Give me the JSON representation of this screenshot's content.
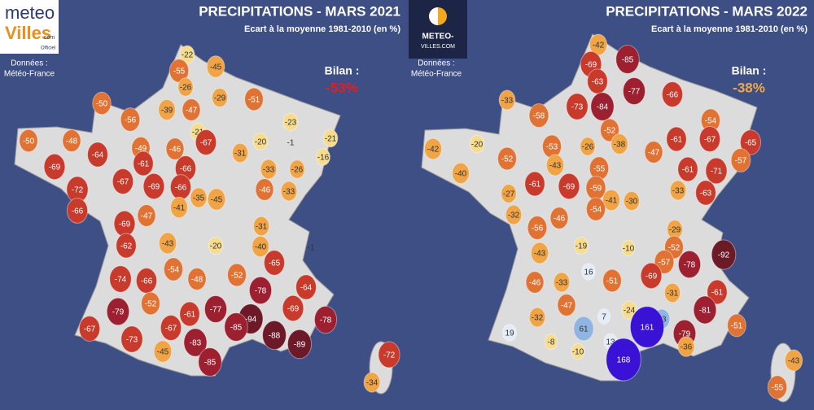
{
  "maps": [
    {
      "title": "PRECIPITATIONS - MARS 2021",
      "subtitle": "Ecart à la moyenne 1981-2010 (en %)",
      "logo": [
        "meteo",
        "Villes",
        ".com",
        "Officiel"
      ],
      "source_label": "Données :",
      "source": "Météo-France",
      "balance_label": "Bilan :",
      "balance": "-53%",
      "values": [
        -22,
        -45,
        -55,
        -26,
        -29,
        -51,
        -50,
        -39,
        -47,
        -56,
        -23,
        -21,
        -67,
        -20,
        -1,
        -21,
        -50,
        -48,
        -49,
        -46,
        -31,
        -16,
        -64,
        -61,
        -33,
        -26,
        -69,
        -66,
        -67,
        -69,
        -66,
        -46,
        -33,
        -72,
        -35,
        -45,
        -41,
        -66,
        -47,
        -31,
        -69,
        -43,
        -20,
        -40,
        -1,
        -62,
        -65,
        -54,
        -48,
        -52,
        -74,
        -66,
        -64,
        -78,
        -52,
        -61,
        -77,
        -79,
        -69,
        -78,
        -94,
        -85,
        -67,
        -67,
        -73,
        -88,
        -83,
        -89,
        -45,
        -72,
        -85,
        -34
      ]
    },
    {
      "title": "PRECIPITATIONS - MARS 2022",
      "subtitle": "Ecart à la moyenne 1981-2010 (en %)",
      "logo": [
        "METEO-",
        "VILLES.COM"
      ],
      "source_label": "Données :",
      "source": "Météo-France",
      "balance_label": "Bilan :",
      "balance": "-38%",
      "values": [
        -42,
        -69,
        -85,
        -63,
        -77,
        -66,
        -33,
        -73,
        -84,
        -58,
        -52,
        -54,
        -38,
        -20,
        -26,
        -53,
        -61,
        -67,
        -65,
        -42,
        -47,
        -52,
        -43,
        -57,
        -40,
        -55,
        -61,
        -71,
        -61,
        -69,
        -59,
        -33,
        -63,
        -27,
        -41,
        -30,
        -54,
        -32,
        -46,
        -29,
        -56,
        -52,
        -19,
        -10,
        -92,
        -43,
        -57,
        -78,
        16,
        -69,
        -51,
        -46,
        -33,
        -31,
        -61,
        -47,
        -24,
        -81,
        7,
        -32,
        33,
        61,
        161,
        -51,
        -79,
        19,
        -8,
        13,
        -36,
        -10,
        168,
        -43,
        -55
      ]
    }
  ]
}
